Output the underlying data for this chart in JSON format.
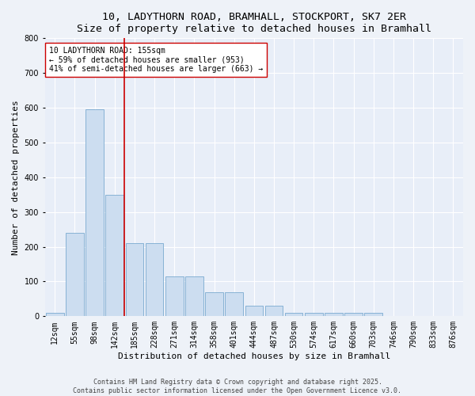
{
  "title_line1": "10, LADYTHORN ROAD, BRAMHALL, STOCKPORT, SK7 2ER",
  "title_line2": "Size of property relative to detached houses in Bramhall",
  "xlabel": "Distribution of detached houses by size in Bramhall",
  "ylabel": "Number of detached properties",
  "bar_color": "#ccddf0",
  "bar_edge_color": "#7aaad0",
  "bg_color": "#e8eef8",
  "grid_color": "#ffffff",
  "categories": [
    "12sqm",
    "55sqm",
    "98sqm",
    "142sqm",
    "185sqm",
    "228sqm",
    "271sqm",
    "314sqm",
    "358sqm",
    "401sqm",
    "444sqm",
    "487sqm",
    "530sqm",
    "574sqm",
    "617sqm",
    "660sqm",
    "703sqm",
    "746sqm",
    "790sqm",
    "833sqm",
    "876sqm"
  ],
  "values": [
    10,
    240,
    595,
    350,
    210,
    210,
    115,
    115,
    70,
    70,
    30,
    30,
    10,
    10,
    10,
    10,
    10,
    0,
    0,
    0,
    0
  ],
  "vline_x_index": 3,
  "vline_color": "#cc0000",
  "annotation_text": "10 LADYTHORN ROAD: 155sqm\n← 59% of detached houses are smaller (953)\n41% of semi-detached houses are larger (663) →",
  "annotation_box_color": "#ffffff",
  "annotation_box_edge": "#cc0000",
  "ylim": [
    0,
    800
  ],
  "yticks": [
    0,
    100,
    200,
    300,
    400,
    500,
    600,
    700,
    800
  ],
  "footer_line1": "Contains HM Land Registry data © Crown copyright and database right 2025.",
  "footer_line2": "Contains public sector information licensed under the Open Government Licence v3.0.",
  "title_fontsize": 9.5,
  "subtitle_fontsize": 8.5,
  "axis_label_fontsize": 8,
  "tick_fontsize": 7,
  "annotation_fontsize": 7,
  "footer_fontsize": 6,
  "fig_bg_color": "#eef2f8"
}
